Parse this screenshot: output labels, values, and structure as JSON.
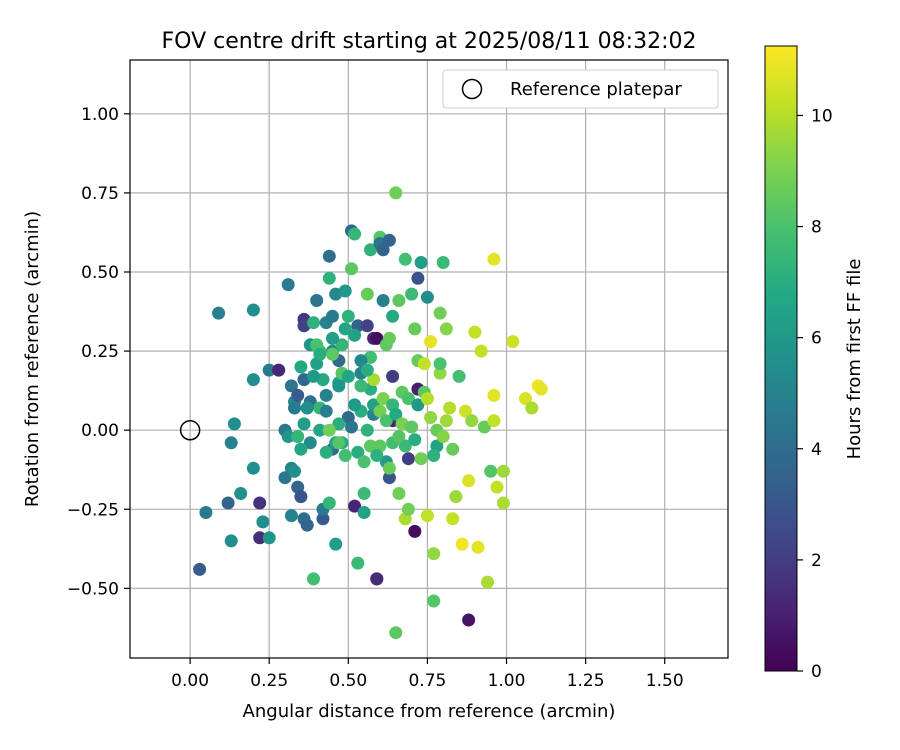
{
  "chart_data": {
    "type": "scatter",
    "title": "FOV centre drift starting at 2025/08/11 08:32:02",
    "xlabel": "Angular distance from reference (arcmin)",
    "ylabel": "Rotation from reference (arcmin)",
    "xlim": [
      -0.19,
      1.7
    ],
    "ylim": [
      -0.72,
      1.17
    ],
    "xticks": [
      0.0,
      0.25,
      0.5,
      0.75,
      1.0,
      1.25,
      1.5
    ],
    "xtick_labels": [
      "0.00",
      "0.25",
      "0.50",
      "0.75",
      "1.00",
      "1.25",
      "1.50"
    ],
    "yticks": [
      -0.5,
      -0.25,
      0.0,
      0.25,
      0.5,
      0.75,
      1.0
    ],
    "ytick_labels": [
      "−0.50",
      "−0.25",
      "0.00",
      "0.25",
      "0.50",
      "0.75",
      "1.00"
    ],
    "grid": true,
    "legend": {
      "placement": "top-right",
      "entries": [
        "Reference platepar"
      ]
    },
    "reference_point": {
      "x": 0.0,
      "y": 0.0,
      "label": "Reference platepar"
    },
    "colorbar": {
      "label": "Hours from first FF file",
      "range": [
        0,
        11.25
      ],
      "ticks": [
        0,
        2,
        4,
        6,
        8,
        10
      ],
      "tick_labels": [
        "0",
        "2",
        "4",
        "6",
        "8",
        "10"
      ],
      "colormap": "viridis"
    },
    "points": [
      [
        0.09,
        0.37,
        4.8
      ],
      [
        0.2,
        0.38,
        5.6
      ],
      [
        0.03,
        -0.44,
        3.2
      ],
      [
        0.05,
        -0.26,
        4.6
      ],
      [
        0.13,
        -0.35,
        5.4
      ],
      [
        0.14,
        0.02,
        5.6
      ],
      [
        0.13,
        -0.04,
        5.0
      ],
      [
        0.12,
        -0.23,
        3.6
      ],
      [
        0.16,
        -0.2,
        5.6
      ],
      [
        0.2,
        -0.12,
        5.6
      ],
      [
        0.2,
        0.16,
        5.6
      ],
      [
        0.22,
        -0.23,
        1.6
      ],
      [
        0.22,
        -0.34,
        1.4
      ],
      [
        0.23,
        -0.29,
        5.6
      ],
      [
        0.25,
        -0.34,
        5.8
      ],
      [
        0.25,
        0.19,
        4.6
      ],
      [
        0.28,
        0.19,
        1.2
      ],
      [
        0.3,
        -0.15,
        4.4
      ],
      [
        0.31,
        0.46,
        4.6
      ],
      [
        0.32,
        0.14,
        4.4
      ],
      [
        0.33,
        0.09,
        5.2
      ],
      [
        0.33,
        0.07,
        4.6
      ],
      [
        0.34,
        0.11,
        3.2
      ],
      [
        0.3,
        0.0,
        4.4
      ],
      [
        0.31,
        -0.02,
        5.8
      ],
      [
        0.32,
        -0.12,
        5.0
      ],
      [
        0.32,
        -0.27,
        5.0
      ],
      [
        0.33,
        -0.13,
        5.6
      ],
      [
        0.34,
        -0.18,
        3.6
      ],
      [
        0.35,
        -0.21,
        3.0
      ],
      [
        0.36,
        0.35,
        1.8
      ],
      [
        0.36,
        0.33,
        2.2
      ],
      [
        0.36,
        0.16,
        3.8
      ],
      [
        0.36,
        -0.28,
        4.0
      ],
      [
        0.37,
        -0.3,
        3.6
      ],
      [
        0.38,
        0.09,
        4.2
      ],
      [
        0.38,
        0.27,
        5.8
      ],
      [
        0.39,
        0.34,
        7.2
      ],
      [
        0.39,
        -0.47,
        7.8
      ],
      [
        0.4,
        0.41,
        4.4
      ],
      [
        0.41,
        0.25,
        7.8
      ],
      [
        0.41,
        0.07,
        7.4
      ],
      [
        0.42,
        -0.28,
        3.2
      ],
      [
        0.42,
        -0.25,
        4.6
      ],
      [
        0.43,
        0.34,
        5.0
      ],
      [
        0.43,
        0.11,
        5.0
      ],
      [
        0.44,
        0.48,
        7.2
      ],
      [
        0.44,
        -0.23,
        7.4
      ],
      [
        0.44,
        0.55,
        4.0
      ],
      [
        0.45,
        0.36,
        4.6
      ],
      [
        0.45,
        0.25,
        5.6
      ],
      [
        0.45,
        -0.06,
        4.0
      ],
      [
        0.46,
        0.43,
        5.2
      ],
      [
        0.46,
        -0.36,
        6.2
      ],
      [
        0.47,
        0.15,
        6.6
      ],
      [
        0.47,
        0.22,
        3.8
      ],
      [
        0.48,
        -0.04,
        6.8
      ],
      [
        0.49,
        0.32,
        6.6
      ],
      [
        0.49,
        0.44,
        6.0
      ],
      [
        0.5,
        0.04,
        3.8
      ],
      [
        0.51,
        0.63,
        3.8
      ],
      [
        0.51,
        0.51,
        8.4
      ],
      [
        0.52,
        0.62,
        7.4
      ],
      [
        0.52,
        -0.24,
        1.2
      ],
      [
        0.53,
        -0.42,
        7.6
      ],
      [
        0.53,
        0.33,
        3.6
      ],
      [
        0.54,
        0.18,
        5.0
      ],
      [
        0.54,
        0.06,
        7.0
      ],
      [
        0.55,
        -0.2,
        7.6
      ],
      [
        0.55,
        -0.26,
        6.4
      ],
      [
        0.56,
        0.33,
        2.2
      ],
      [
        0.56,
        0.43,
        8.6
      ],
      [
        0.57,
        0.57,
        7.2
      ],
      [
        0.57,
        0.23,
        7.8
      ],
      [
        0.57,
        0.13,
        7.0
      ],
      [
        0.58,
        0.16,
        9.8
      ],
      [
        0.58,
        0.29,
        1.2
      ],
      [
        0.59,
        -0.47,
        0.6
      ],
      [
        0.59,
        0.29,
        0.4
      ],
      [
        0.59,
        -0.47,
        1.4
      ],
      [
        0.6,
        0.6,
        8.6
      ],
      [
        0.6,
        0.61,
        8.2
      ],
      [
        0.6,
        0.59,
        4.4
      ],
      [
        0.61,
        0.41,
        4.8
      ],
      [
        0.61,
        0.57,
        3.6
      ],
      [
        0.62,
        0.27,
        8.4
      ],
      [
        0.63,
        0.29,
        8.6
      ],
      [
        0.63,
        0.6,
        3.6
      ],
      [
        0.64,
        0.36,
        6.8
      ],
      [
        0.64,
        0.17,
        2.0
      ],
      [
        0.64,
        0.03,
        1.2
      ],
      [
        0.65,
        0.75,
        8.8
      ],
      [
        0.65,
        -0.64,
        8.4
      ],
      [
        0.66,
        0.41,
        8.4
      ],
      [
        0.66,
        -0.2,
        8.8
      ],
      [
        0.67,
        0.12,
        8.4
      ],
      [
        0.68,
        0.54,
        7.8
      ],
      [
        0.68,
        -0.28,
        9.8
      ],
      [
        0.69,
        -0.25,
        8.8
      ],
      [
        0.69,
        -0.09,
        2.0
      ],
      [
        0.7,
        0.43,
        7.6
      ],
      [
        0.71,
        0.32,
        8.6
      ],
      [
        0.71,
        -0.32,
        0.4
      ],
      [
        0.72,
        0.22,
        8.6
      ],
      [
        0.72,
        0.48,
        2.8
      ],
      [
        0.72,
        0.13,
        1.0
      ],
      [
        0.73,
        0.53,
        6.2
      ],
      [
        0.74,
        0.21,
        10.2
      ],
      [
        0.75,
        0.42,
        5.4
      ],
      [
        0.75,
        -0.27,
        10.2
      ],
      [
        0.76,
        0.28,
        10.8
      ],
      [
        0.77,
        -0.39,
        9.4
      ],
      [
        0.77,
        -0.54,
        8.2
      ],
      [
        0.78,
        -0.05,
        6.4
      ],
      [
        0.79,
        0.37,
        8.8
      ],
      [
        0.79,
        0.18,
        9.4
      ],
      [
        0.8,
        0.53,
        7.6
      ],
      [
        0.81,
        0.03,
        9.6
      ],
      [
        0.81,
        0.32,
        9.2
      ],
      [
        0.82,
        0.07,
        10.0
      ],
      [
        0.83,
        -0.06,
        8.6
      ],
      [
        0.83,
        -0.28,
        10.2
      ],
      [
        0.84,
        -0.21,
        9.6
      ],
      [
        0.85,
        0.17,
        7.8
      ],
      [
        0.86,
        -0.36,
        11.0
      ],
      [
        0.87,
        0.06,
        10.4
      ],
      [
        0.88,
        -0.16,
        10.6
      ],
      [
        0.88,
        -0.6,
        0.6
      ],
      [
        0.89,
        0.03,
        9.4
      ],
      [
        0.9,
        0.31,
        10.2
      ],
      [
        0.91,
        -0.37,
        10.8
      ],
      [
        0.92,
        0.25,
        10.2
      ],
      [
        0.93,
        0.01,
        8.6
      ],
      [
        0.94,
        -0.48,
        9.8
      ],
      [
        0.95,
        -0.13,
        8.2
      ],
      [
        0.96,
        0.54,
        10.8
      ],
      [
        0.96,
        0.03,
        10.2
      ],
      [
        0.96,
        0.11,
        10.8
      ],
      [
        0.97,
        -0.18,
        10.2
      ],
      [
        0.99,
        -0.23,
        9.8
      ],
      [
        0.99,
        -0.13,
        9.6
      ],
      [
        1.02,
        0.28,
        10.4
      ],
      [
        1.06,
        0.1,
        10.6
      ],
      [
        1.08,
        0.07,
        9.8
      ],
      [
        1.1,
        0.14,
        11.0
      ],
      [
        1.11,
        0.13,
        10.8
      ],
      [
        0.58,
        0.05,
        4.8
      ],
      [
        0.6,
        -0.05,
        8.4
      ],
      [
        0.62,
        -0.1,
        6.0
      ],
      [
        0.63,
        -0.15,
        3.0
      ],
      [
        0.64,
        -0.04,
        7.8
      ],
      [
        0.48,
        0.18,
        8.2
      ],
      [
        0.47,
        0.02,
        7.0
      ],
      [
        0.42,
        0.16,
        6.8
      ],
      [
        0.4,
        0.21,
        6.4
      ],
      [
        0.38,
        -0.04,
        5.4
      ],
      [
        0.36,
        0.02,
        6.2
      ],
      [
        0.35,
        0.2,
        6.8
      ],
      [
        0.34,
        -0.02,
        7.4
      ],
      [
        0.4,
        0.27,
        8.0
      ],
      [
        0.41,
        0.0,
        6.6
      ],
      [
        0.43,
        -0.07,
        7.0
      ],
      [
        0.44,
        0.0,
        8.8
      ],
      [
        0.45,
        0.24,
        8.4
      ],
      [
        0.46,
        -0.04,
        6.2
      ],
      [
        0.47,
        0.14,
        5.8
      ],
      [
        0.48,
        0.27,
        7.4
      ],
      [
        0.49,
        -0.08,
        7.8
      ],
      [
        0.5,
        0.36,
        7.2
      ],
      [
        0.5,
        0.17,
        6.6
      ],
      [
        0.51,
        0.01,
        4.4
      ],
      [
        0.52,
        0.08,
        6.0
      ],
      [
        0.53,
        -0.07,
        7.0
      ],
      [
        0.54,
        0.14,
        7.6
      ],
      [
        0.55,
        -0.1,
        8.0
      ],
      [
        0.56,
        0.0,
        7.2
      ],
      [
        0.57,
        -0.05,
        8.4
      ],
      [
        0.58,
        0.08,
        6.4
      ],
      [
        0.59,
        -0.08,
        7.2
      ],
      [
        0.6,
        0.06,
        8.8
      ],
      [
        0.61,
        0.1,
        9.0
      ],
      [
        0.62,
        0.03,
        8.0
      ],
      [
        0.63,
        -0.12,
        8.6
      ],
      [
        0.64,
        0.08,
        7.4
      ],
      [
        0.65,
        0.05,
        6.8
      ],
      [
        0.66,
        -0.02,
        8.2
      ],
      [
        0.67,
        0.02,
        9.0
      ],
      [
        0.68,
        -0.05,
        7.6
      ],
      [
        0.69,
        0.1,
        8.0
      ],
      [
        0.7,
        0.01,
        8.4
      ],
      [
        0.71,
        -0.03,
        7.0
      ],
      [
        0.72,
        0.08,
        6.0
      ],
      [
        0.73,
        -0.09,
        8.8
      ],
      [
        0.74,
        0.12,
        8.4
      ],
      [
        0.75,
        0.1,
        10.0
      ],
      [
        0.76,
        0.04,
        9.4
      ],
      [
        0.77,
        -0.08,
        7.2
      ],
      [
        0.78,
        0.0,
        8.6
      ],
      [
        0.79,
        0.21,
        8.0
      ],
      [
        0.8,
        -0.02,
        9.2
      ],
      [
        0.47,
        -0.04,
        8.2
      ],
      [
        0.52,
        0.3,
        6.4
      ],
      [
        0.54,
        0.22,
        5.2
      ],
      [
        0.56,
        0.19,
        7.0
      ],
      [
        0.43,
        0.06,
        4.8
      ],
      [
        0.45,
        0.29,
        6.2
      ],
      [
        0.41,
        0.24,
        7.0
      ],
      [
        0.39,
        0.17,
        6.0
      ],
      [
        0.37,
        0.07,
        5.6
      ],
      [
        0.35,
        -0.06,
        6.6
      ]
    ]
  }
}
